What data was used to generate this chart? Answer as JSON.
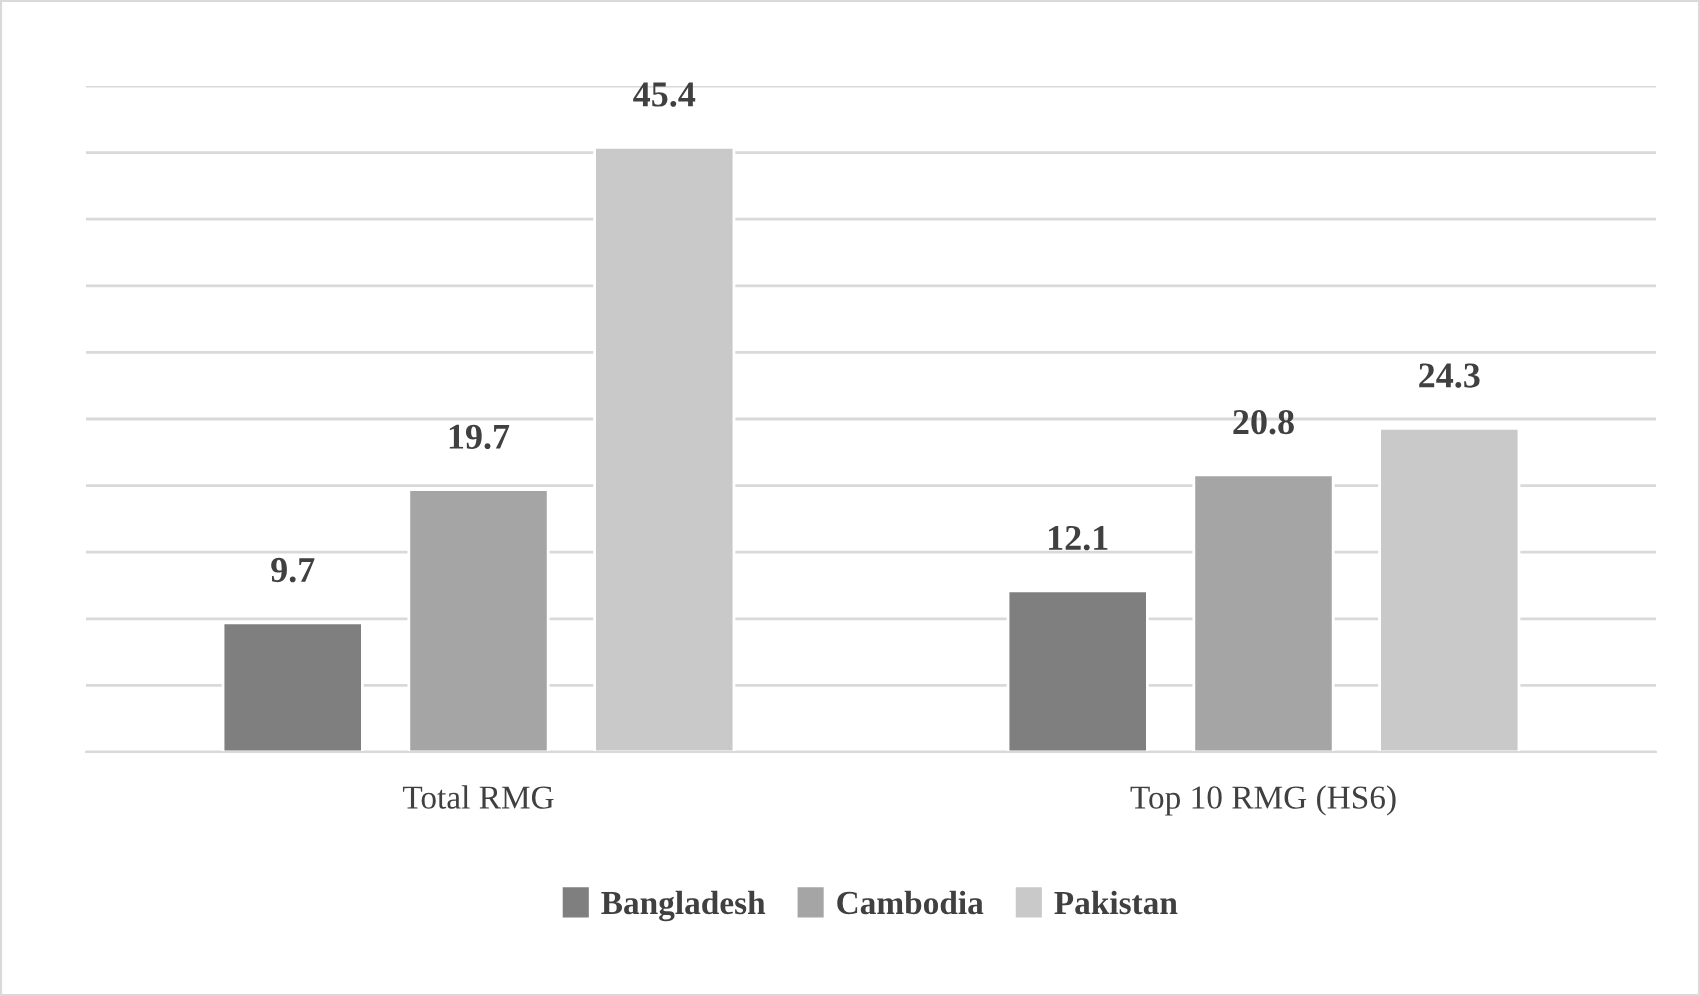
{
  "chart_data": {
    "type": "bar",
    "categories": [
      "Total RMG",
      "Top 10 RMG (HS6)"
    ],
    "series": [
      {
        "name": "Bangladesh",
        "color": "#7f7f7f",
        "values": [
          9.7,
          12.1
        ]
      },
      {
        "name": "Cambodia",
        "color": "#a5a5a5",
        "values": [
          19.7,
          20.8
        ]
      },
      {
        "name": "Pakistan",
        "color": "#c9c9c9",
        "values": [
          45.4,
          24.3
        ]
      }
    ],
    "ylim": [
      0,
      50
    ],
    "yticks": [
      {
        "value": 0,
        "label": null
      },
      {
        "value": 5,
        "label": null
      },
      {
        "value": 10,
        "label": null
      },
      {
        "value": 15,
        "label": null
      },
      {
        "value": 20,
        "label": null
      },
      {
        "value": 25,
        "label": null
      },
      {
        "value": 30,
        "label": null
      },
      {
        "value": 35,
        "label": null
      },
      {
        "value": 40,
        "label": null
      },
      {
        "value": 45,
        "label": null
      },
      {
        "value": 50,
        "label": null
      }
    ],
    "tick_labels": "x",
    "grid": "y",
    "legend": "bottom",
    "data_labels": true
  }
}
